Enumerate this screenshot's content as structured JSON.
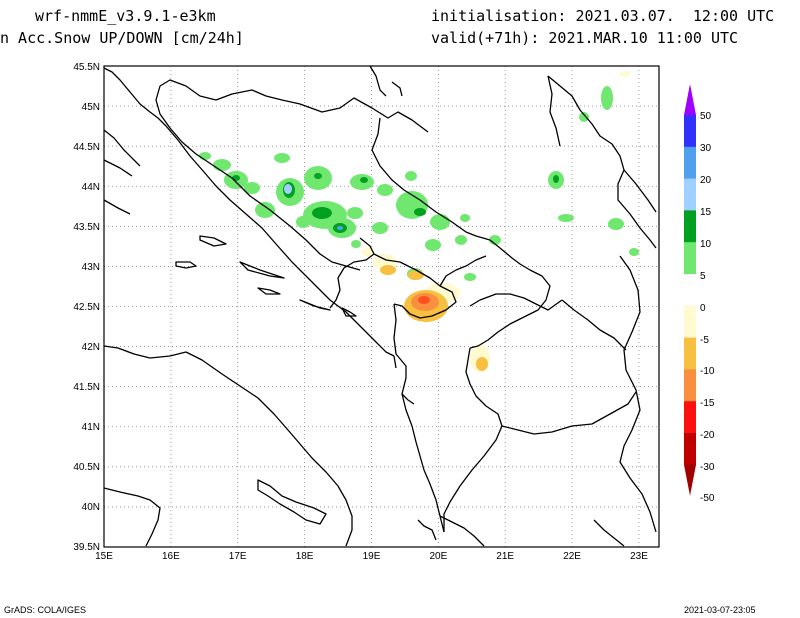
{
  "header": {
    "model": "wrf-nmmE_v3.9.1-e3km",
    "field": "n Acc.Snow UP/DOWN [cm/24h]",
    "init": "initialisation: 2021.03.07.  12:00 UTC",
    "valid": "valid(+71h): 2021.MAR.10 11:00 UTC"
  },
  "axes": {
    "lat_labels": [
      "45.5N",
      "45N",
      "44.5N",
      "44N",
      "43.5N",
      "43N",
      "42.5N",
      "42N",
      "41.5N",
      "41N",
      "40.5N",
      "40N",
      "39.5N"
    ],
    "lon_labels": [
      "15E",
      "16E",
      "17E",
      "18E",
      "19E",
      "20E",
      "21E",
      "22E",
      "23E"
    ],
    "lat_range": [
      39.5,
      45.5
    ],
    "lon_range": [
      15,
      23.3
    ]
  },
  "legend": {
    "labels": [
      "50",
      "30",
      "20",
      "15",
      "10",
      "5",
      "0",
      "-5",
      "-10",
      "-15",
      "-20",
      "-30",
      "-50"
    ],
    "colors": [
      "#a000ff",
      "#3030ff",
      "#50a0f0",
      "#a0d0ff",
      "#00a020",
      "#70e870",
      "#ffffff",
      "#fffad0",
      "#f8c040",
      "#f89040",
      "#ff1010",
      "#c00000",
      "#a00000"
    ]
  },
  "footer": {
    "left": "GrADS: COLA/IGES",
    "right": "2021-03-07-23:05"
  }
}
